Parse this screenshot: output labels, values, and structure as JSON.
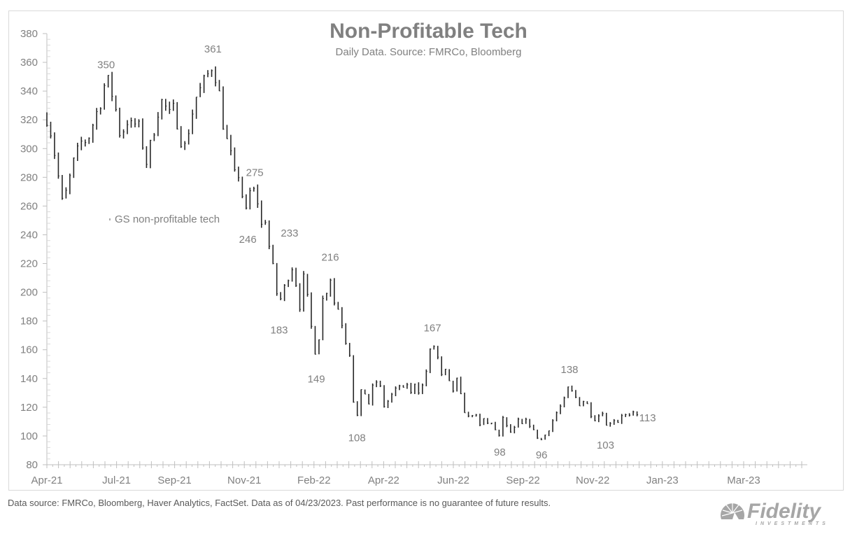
{
  "chart_data": {
    "type": "line",
    "style": "daily high-low bars",
    "title": "Non-Profitable Tech",
    "subtitle": "Daily Data. Source: FMRCo, Bloomberg",
    "xlabel": "",
    "ylabel": "",
    "ylim": [
      80,
      380
    ],
    "yticks": [
      80,
      100,
      120,
      140,
      160,
      180,
      200,
      220,
      240,
      260,
      280,
      300,
      320,
      340,
      360,
      380
    ],
    "xticks": [
      "Apr-21",
      "Jul-21",
      "Sep-21",
      "Nov-21",
      "Feb-22",
      "Apr-22",
      "Jun-22",
      "Sep-22",
      "Nov-22",
      "Jan-23",
      "Mar-23"
    ],
    "grid": false,
    "legend": {
      "position": "middle-left",
      "entries": [
        "GS non-profitable tech"
      ]
    },
    "series": [
      {
        "name": "GS non-profitable tech",
        "anchor_points": [
          {
            "t": 0.0,
            "v": 322
          },
          {
            "t": 0.4,
            "v": 310
          },
          {
            "t": 1.0,
            "v": 280
          },
          {
            "t": 1.3,
            "v": 262
          },
          {
            "t": 1.7,
            "v": 270
          },
          {
            "t": 2.3,
            "v": 290
          },
          {
            "t": 3.0,
            "v": 305
          },
          {
            "t": 3.5,
            "v": 306
          },
          {
            "t": 4.0,
            "v": 318
          },
          {
            "t": 4.7,
            "v": 335
          },
          {
            "t": 5.1,
            "v": 349
          },
          {
            "t": 5.5,
            "v": 342
          },
          {
            "t": 6.0,
            "v": 325
          },
          {
            "t": 6.4,
            "v": 305
          },
          {
            "t": 6.8,
            "v": 322
          },
          {
            "t": 7.2,
            "v": 315
          },
          {
            "t": 7.8,
            "v": 318
          },
          {
            "t": 8.2,
            "v": 305
          },
          {
            "t": 8.6,
            "v": 290
          },
          {
            "t": 9.0,
            "v": 305
          },
          {
            "t": 9.6,
            "v": 328
          },
          {
            "t": 10.0,
            "v": 334
          },
          {
            "t": 10.5,
            "v": 322
          },
          {
            "t": 11.0,
            "v": 328
          },
          {
            "t": 11.4,
            "v": 312
          },
          {
            "t": 11.8,
            "v": 298
          },
          {
            "t": 12.2,
            "v": 313
          },
          {
            "t": 12.8,
            "v": 335
          },
          {
            "t": 13.3,
            "v": 342
          },
          {
            "t": 13.8,
            "v": 350
          },
          {
            "t": 14.2,
            "v": 358
          },
          {
            "t": 14.6,
            "v": 350
          },
          {
            "t": 15.0,
            "v": 330
          },
          {
            "t": 15.3,
            "v": 310
          },
          {
            "t": 15.7,
            "v": 300
          },
          {
            "t": 16.0,
            "v": 288
          },
          {
            "t": 16.3,
            "v": 275
          },
          {
            "t": 16.6,
            "v": 286
          },
          {
            "t": 16.9,
            "v": 262
          },
          {
            "t": 17.2,
            "v": 254
          },
          {
            "t": 17.5,
            "v": 270
          },
          {
            "t": 17.9,
            "v": 270
          },
          {
            "t": 18.2,
            "v": 262
          },
          {
            "t": 18.5,
            "v": 245
          },
          {
            "t": 18.8,
            "v": 252
          },
          {
            "t": 19.0,
            "v": 238
          },
          {
            "t": 19.3,
            "v": 225
          },
          {
            "t": 19.7,
            "v": 205
          },
          {
            "t": 20.0,
            "v": 188
          },
          {
            "t": 20.3,
            "v": 205
          },
          {
            "t": 20.7,
            "v": 200
          },
          {
            "t": 20.9,
            "v": 226
          },
          {
            "t": 21.2,
            "v": 215
          },
          {
            "t": 21.5,
            "v": 205
          },
          {
            "t": 21.8,
            "v": 190
          },
          {
            "t": 22.1,
            "v": 210
          },
          {
            "t": 22.4,
            "v": 198
          },
          {
            "t": 22.7,
            "v": 178
          },
          {
            "t": 23.0,
            "v": 168
          },
          {
            "t": 23.2,
            "v": 151
          },
          {
            "t": 23.5,
            "v": 175
          },
          {
            "t": 23.8,
            "v": 198
          },
          {
            "t": 24.1,
            "v": 202
          },
          {
            "t": 24.4,
            "v": 212
          },
          {
            "t": 24.6,
            "v": 196
          },
          {
            "t": 24.9,
            "v": 190
          },
          {
            "t": 25.2,
            "v": 188
          },
          {
            "t": 25.6,
            "v": 170
          },
          {
            "t": 26.0,
            "v": 160
          },
          {
            "t": 26.2,
            "v": 155
          },
          {
            "t": 26.4,
            "v": 125
          },
          {
            "t": 26.7,
            "v": 112
          },
          {
            "t": 27.0,
            "v": 130
          },
          {
            "t": 27.4,
            "v": 130
          },
          {
            "t": 27.7,
            "v": 122
          },
          {
            "t": 28.1,
            "v": 135
          },
          {
            "t": 28.6,
            "v": 140
          },
          {
            "t": 28.9,
            "v": 122
          },
          {
            "t": 29.2,
            "v": 120
          },
          {
            "t": 29.6,
            "v": 130
          },
          {
            "t": 29.9,
            "v": 125
          },
          {
            "t": 30.2,
            "v": 140
          },
          {
            "t": 30.6,
            "v": 128
          },
          {
            "t": 30.9,
            "v": 140
          },
          {
            "t": 31.3,
            "v": 128
          },
          {
            "t": 31.7,
            "v": 138
          },
          {
            "t": 32.1,
            "v": 130
          },
          {
            "t": 32.5,
            "v": 138
          },
          {
            "t": 32.9,
            "v": 155
          },
          {
            "t": 33.2,
            "v": 165
          },
          {
            "t": 33.6,
            "v": 158
          },
          {
            "t": 33.9,
            "v": 140
          },
          {
            "t": 34.3,
            "v": 145
          },
          {
            "t": 34.6,
            "v": 138
          },
          {
            "t": 34.9,
            "v": 128
          },
          {
            "t": 35.2,
            "v": 142
          },
          {
            "t": 35.5,
            "v": 132
          },
          {
            "t": 35.8,
            "v": 122
          },
          {
            "t": 36.2,
            "v": 112
          },
          {
            "t": 36.5,
            "v": 114
          },
          {
            "t": 36.8,
            "v": 118
          },
          {
            "t": 37.2,
            "v": 105
          },
          {
            "t": 37.6,
            "v": 112
          },
          {
            "t": 38.0,
            "v": 108
          },
          {
            "t": 38.3,
            "v": 110
          },
          {
            "t": 38.7,
            "v": 102
          },
          {
            "t": 39.0,
            "v": 98
          },
          {
            "t": 39.3,
            "v": 115
          },
          {
            "t": 39.6,
            "v": 106
          },
          {
            "t": 40.0,
            "v": 102
          },
          {
            "t": 40.3,
            "v": 105
          },
          {
            "t": 40.7,
            "v": 112
          },
          {
            "t": 41.0,
            "v": 106
          },
          {
            "t": 41.4,
            "v": 112
          },
          {
            "t": 41.8,
            "v": 104
          },
          {
            "t": 42.2,
            "v": 100
          },
          {
            "t": 42.6,
            "v": 97
          },
          {
            "t": 43.0,
            "v": 102
          },
          {
            "t": 43.4,
            "v": 108
          },
          {
            "t": 43.8,
            "v": 115
          },
          {
            "t": 44.2,
            "v": 120
          },
          {
            "t": 44.6,
            "v": 125
          },
          {
            "t": 45.0,
            "v": 136
          },
          {
            "t": 45.3,
            "v": 128
          },
          {
            "t": 45.7,
            "v": 126
          },
          {
            "t": 46.0,
            "v": 120
          },
          {
            "t": 46.3,
            "v": 127
          },
          {
            "t": 46.7,
            "v": 118
          },
          {
            "t": 47.1,
            "v": 112
          },
          {
            "t": 47.5,
            "v": 114
          },
          {
            "t": 47.8,
            "v": 120
          },
          {
            "t": 48.1,
            "v": 106
          },
          {
            "t": 48.5,
            "v": 110
          },
          {
            "t": 48.9,
            "v": 112
          },
          {
            "t": 49.2,
            "v": 110
          },
          {
            "t": 49.6,
            "v": 117
          },
          {
            "t": 50.0,
            "v": 112
          },
          {
            "t": 50.4,
            "v": 115
          },
          {
            "t": 50.8,
            "v": 114
          },
          {
            "t": 51.0,
            "v": 113
          }
        ]
      }
    ],
    "annotations": [
      {
        "label": "350",
        "x_tick": 5.1,
        "value": 350,
        "position": "above"
      },
      {
        "label": "361",
        "x_tick": 14.3,
        "value": 361,
        "position": "above"
      },
      {
        "label": "275",
        "x_tick": 17.9,
        "value": 275,
        "position": "above"
      },
      {
        "label": "246",
        "x_tick": 17.3,
        "value": 246,
        "position": "below"
      },
      {
        "label": "233",
        "x_tick": 20.9,
        "value": 233,
        "position": "above"
      },
      {
        "label": "183",
        "x_tick": 20.0,
        "value": 183,
        "position": "below"
      },
      {
        "label": "216",
        "x_tick": 24.4,
        "value": 216,
        "position": "above"
      },
      {
        "label": "149",
        "x_tick": 23.2,
        "value": 149,
        "position": "below"
      },
      {
        "label": "108",
        "x_tick": 26.7,
        "value": 108,
        "position": "below"
      },
      {
        "label": "167",
        "x_tick": 33.2,
        "value": 167,
        "position": "above"
      },
      {
        "label": "98",
        "x_tick": 39.0,
        "value": 98,
        "position": "below"
      },
      {
        "label": "96",
        "x_tick": 42.6,
        "value": 96,
        "position": "below"
      },
      {
        "label": "138",
        "x_tick": 45.0,
        "value": 138,
        "position": "above"
      },
      {
        "label": "103",
        "x_tick": 48.1,
        "value": 103,
        "position": "below"
      },
      {
        "label": "113",
        "x_tick": 51.0,
        "value": 113,
        "position": "right"
      }
    ],
    "x_axis": {
      "minor_tick_count": 65,
      "label_positions_in_ticks": [
        0,
        6,
        11,
        17,
        23,
        29,
        35,
        41,
        47,
        53,
        60
      ]
    }
  },
  "header": {
    "title": "Non-Profitable Tech",
    "subtitle": "Daily Data. Source: FMRCo, Bloomberg"
  },
  "legend": {
    "label": "GS non-profitable tech"
  },
  "footer": {
    "note": "Data source: FMRCo, Bloomberg, Haver Analytics, FactSet. Data as of 04/23/2023. Past performance is no guarantee of future results.",
    "logo_text": "Fidelity",
    "logo_subtext": "INVESTMENTS"
  },
  "colors": {
    "series": "#262626",
    "axis": "#bfbfbf",
    "text": "#808080",
    "logo": "#a6a6a6"
  }
}
